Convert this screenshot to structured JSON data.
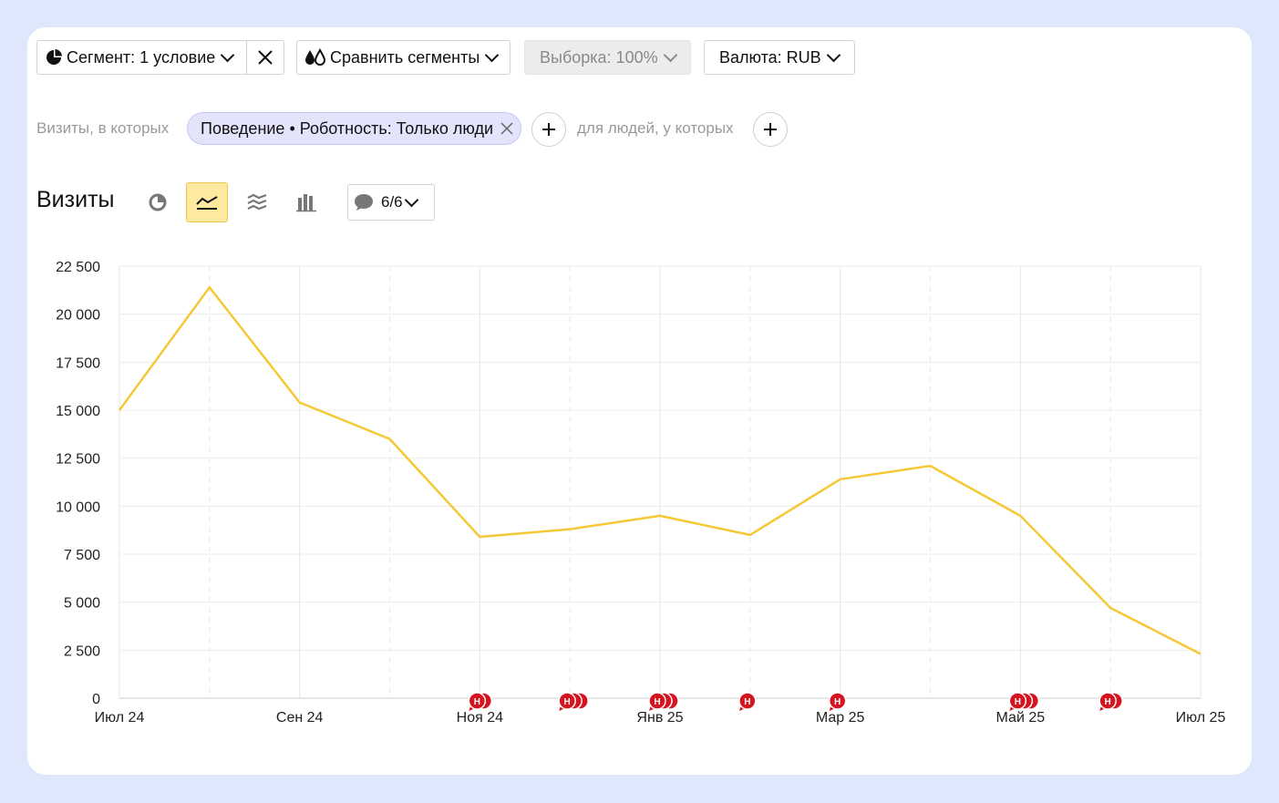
{
  "toolbar": {
    "segment_label": "Сегмент: 1 условие",
    "compare_label": "Сравнить сегменты",
    "sample_label": "Выборка: 100%",
    "currency_label": "Валюта: RUB"
  },
  "filter": {
    "prefix": "Визиты, в которых",
    "chip_label": "Поведение • Роботность: Только люди",
    "people_label": "для людей, у которых"
  },
  "report": {
    "title": "Визиты",
    "notes_label": "6/6",
    "views": [
      "pie-chart-icon",
      "line-chart-icon",
      "area-chart-icon",
      "bar-chart-icon"
    ],
    "active_view": "line-chart-icon"
  },
  "colors": {
    "line": "#f5c836",
    "note_marker": "#d6141f",
    "active_view_bg": "#fdeaa0"
  },
  "chart_data": {
    "type": "line",
    "x_labels": [
      "Июл 24",
      "Сен 24",
      "Ноя 24",
      "Янв 25",
      "Мар 25",
      "Май 25",
      "Июл 25"
    ],
    "x": [
      "2024-07",
      "2024-08",
      "2024-09",
      "2024-10",
      "2024-11",
      "2024-12",
      "2025-01",
      "2025-02",
      "2025-03",
      "2025-04",
      "2025-05",
      "2025-06",
      "2025-07"
    ],
    "values": [
      15000,
      21400,
      15400,
      13500,
      8400,
      8800,
      9500,
      8500,
      11400,
      12100,
      9500,
      4700,
      2300
    ],
    "yticks": [
      "0",
      "2 500",
      "5 000",
      "7 500",
      "10 000",
      "12 500",
      "15 000",
      "17 500",
      "20 000",
      "22 500"
    ],
    "ylim": [
      0,
      22500
    ],
    "grid": true,
    "notes": [
      {
        "month": "2024-11",
        "count": 2,
        "label": "Н"
      },
      {
        "month": "2024-12",
        "count": 3,
        "label": "Н"
      },
      {
        "month": "2025-01",
        "count": 3,
        "label": "Н"
      },
      {
        "month": "2025-02",
        "count": 1,
        "label": "Н"
      },
      {
        "month": "2025-03",
        "count": 1,
        "label": "Н"
      },
      {
        "month": "2025-05",
        "count": 3,
        "label": "Н"
      },
      {
        "month": "2025-06",
        "count": 2,
        "label": "Н"
      }
    ]
  }
}
